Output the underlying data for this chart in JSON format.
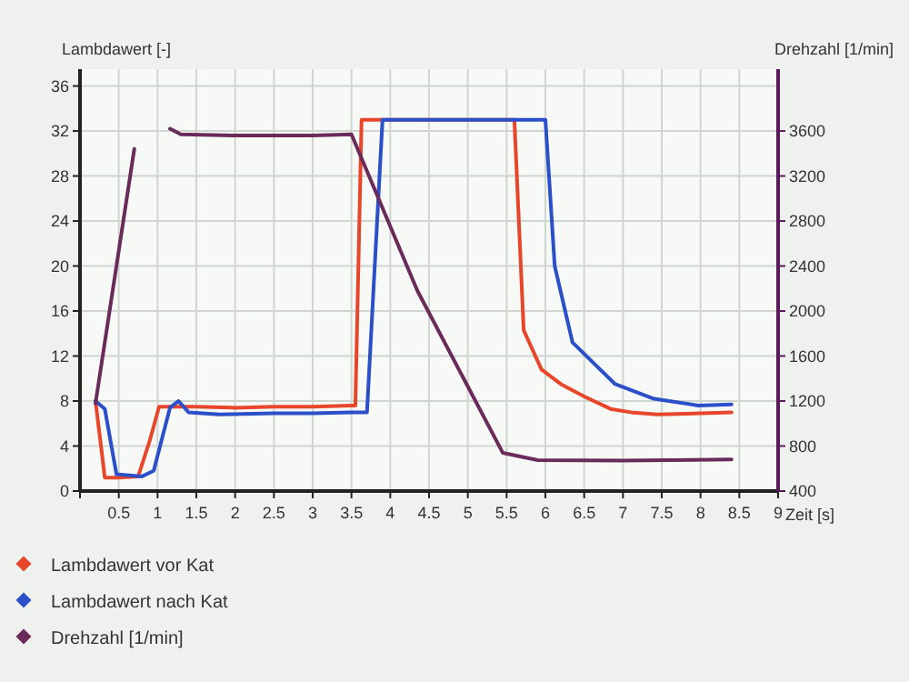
{
  "chart_data": {
    "type": "line",
    "xlabel": "Zeit [s]",
    "ylabel": "Lambdawert [-]",
    "y2label": "Drehzahl [1/min]",
    "xlim": [
      0,
      9
    ],
    "xticks": [
      {
        "value": 0,
        "label": null
      },
      0.5,
      1,
      1.5,
      2,
      2.5,
      3,
      3.5,
      4,
      4.5,
      5,
      5.5,
      6,
      6.5,
      7,
      7.5,
      8,
      8.5,
      9
    ],
    "ylim": [
      0,
      37.5
    ],
    "yticks": [
      0,
      4,
      8,
      12,
      16,
      20,
      24,
      28,
      32,
      36
    ],
    "y2lim": [
      400,
      4150
    ],
    "y2ticks": [
      400,
      800,
      1200,
      1600,
      2000,
      2400,
      2800,
      3200,
      3600
    ],
    "grid": true,
    "legend": "bottom",
    "line_style": "solid",
    "series": [
      {
        "name": "Lambdawert vor Kat",
        "color": "#e8462a",
        "x": [
          0.2,
          0.32,
          0.5,
          0.75,
          0.9,
          1.02,
          1.5,
          2,
          2.5,
          3,
          3.5,
          3.55,
          3.63,
          5.55,
          5.6,
          5.72,
          5.95,
          6.2,
          6.5,
          6.84,
          7.1,
          7.44,
          8,
          8.4
        ],
        "values": [
          8,
          1.2,
          1.2,
          1.3,
          4.5,
          7.5,
          7.5,
          7.4,
          7.5,
          7.5,
          7.6,
          7.6,
          33,
          33,
          33,
          14.3,
          10.8,
          9.5,
          8.4,
          7.3,
          7,
          6.8,
          6.9,
          7
        ]
      },
      {
        "name": "Lambdawert nach Kat",
        "color": "#2a4fc8",
        "x": [
          0.2,
          0.32,
          0.47,
          0.8,
          0.95,
          1.16,
          1.27,
          1.4,
          1.8,
          2.5,
          3,
          3.5,
          3.7,
          3.9,
          4.5,
          5,
          5.5,
          6,
          6.12,
          6.35,
          6.9,
          7.4,
          7.97,
          8.4
        ],
        "values": [
          8,
          7.3,
          1.5,
          1.3,
          1.8,
          7.4,
          8,
          7,
          6.8,
          6.9,
          6.9,
          7,
          7,
          33,
          33,
          33,
          33,
          33,
          20,
          13.2,
          9.5,
          8.2,
          7.6,
          7.7
        ]
      },
      {
        "name": "Drehzahl [1/min]",
        "color": "#6a2a5a",
        "axis": "y2",
        "x": [
          0.2,
          0.7,
          0.9,
          1.16,
          1.3,
          2,
          3,
          3.5,
          4.35,
          5.45,
          5.9,
          7,
          8.4
        ],
        "values": [
          1180,
          3440,
          null,
          3620,
          3570,
          3560,
          3560,
          3570,
          2180,
          740,
          675,
          670,
          680
        ]
      }
    ]
  }
}
